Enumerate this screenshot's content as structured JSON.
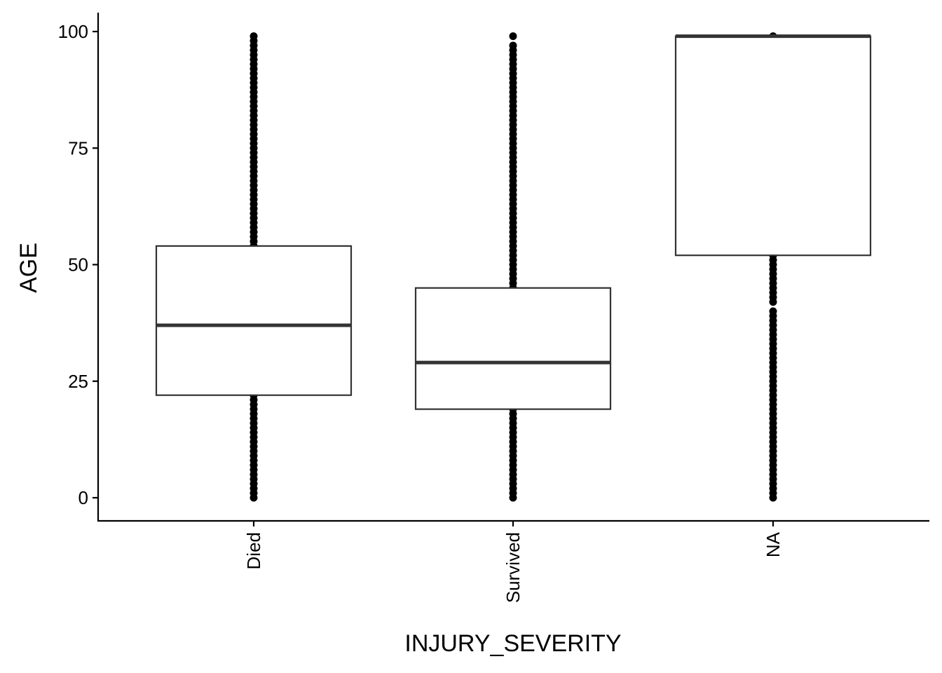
{
  "chart_data": {
    "type": "boxplot",
    "title": "",
    "xlabel": "INJURY_SEVERITY",
    "ylabel": "AGE",
    "ylim": [
      -5,
      104
    ],
    "yticks": [
      0,
      25,
      50,
      75,
      100
    ],
    "ytick_labels": [
      "0",
      "25",
      "50",
      "75",
      "100"
    ],
    "categories": [
      "Died",
      "Survived",
      "NA"
    ],
    "grid": false,
    "legend": "none",
    "boxes": [
      {
        "category": "Died",
        "q1": 22,
        "median": 37,
        "q3": 54,
        "outlier_ranges": [
          [
            0,
            22
          ],
          [
            54,
            98
          ]
        ],
        "outlier_points": [
          99
        ]
      },
      {
        "category": "Survived",
        "q1": 19,
        "median": 29,
        "q3": 45,
        "outlier_ranges": [
          [
            0,
            19
          ],
          [
            45,
            97
          ]
        ],
        "outlier_points": [
          99
        ]
      },
      {
        "category": "NA",
        "q1": 52,
        "median": 99,
        "q3": 99,
        "outlier_ranges": [
          [
            0,
            7
          ],
          [
            8,
            40
          ],
          [
            42,
            52
          ]
        ],
        "outlier_points": [
          99
        ]
      }
    ],
    "colors": {
      "box_outline": "#333333",
      "median": "#333333",
      "outlier": "#000000",
      "axis": "#000000"
    }
  }
}
